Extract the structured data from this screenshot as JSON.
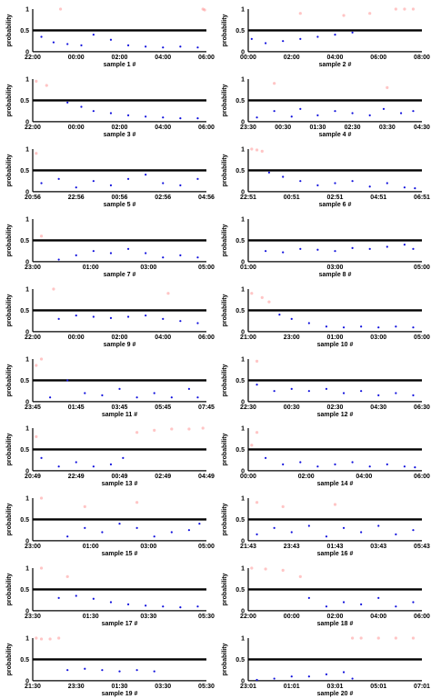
{
  "charts": {
    "ylabel": "probability",
    "yticks": [
      "0",
      "0.5",
      "1"
    ],
    "threshold": 0.5,
    "colors": {
      "high": "#ff3030",
      "low": "#1010dd",
      "line": "#000000",
      "axis": "#000000"
    },
    "panels": [
      {
        "caption": "sample 1 #",
        "xticks": [
          "22:00",
          "00:00",
          "02:00",
          "04:00",
          "06:00"
        ]
      },
      {
        "caption": "sample 2 #",
        "xticks": [
          "00:00",
          "02:00",
          "04:00",
          "06:00",
          "08:00"
        ]
      },
      {
        "caption": "sample 3 #",
        "xticks": [
          "22:00",
          "00:00",
          "02:00",
          "04:00",
          "06:00"
        ]
      },
      {
        "caption": "sample 4 #",
        "xticks": [
          "23:30",
          "00:30",
          "01:30",
          "02:30",
          "03:30",
          "04:30"
        ]
      },
      {
        "caption": "sample 5 #",
        "xticks": [
          "20:56",
          "22:56",
          "00:56",
          "02:56",
          "04:56"
        ]
      },
      {
        "caption": "sample 6 #",
        "xticks": [
          "22:51",
          "00:51",
          "02:51",
          "04:51",
          "06:51"
        ]
      },
      {
        "caption": "sample 7 #",
        "xticks": [
          "23:00",
          "01:00",
          "03:00",
          "05:00"
        ]
      },
      {
        "caption": "sample 8 #",
        "xticks": [
          "01:00",
          "03:00",
          "05:00"
        ]
      },
      {
        "caption": "sample 9 #",
        "xticks": [
          "22:00",
          "00:00",
          "02:00",
          "04:00",
          "06:00"
        ]
      },
      {
        "caption": "sample 10 #",
        "xticks": [
          "21:00",
          "23:00",
          "01:00",
          "03:00",
          "05:00"
        ]
      },
      {
        "caption": "sample 11 #",
        "xticks": [
          "23:45",
          "01:45",
          "03:45",
          "05:45",
          "07:45"
        ]
      },
      {
        "caption": "sample 12 #",
        "xticks": [
          "22:30",
          "00:30",
          "02:30",
          "04:30",
          "06:30"
        ]
      },
      {
        "caption": "sample 13 #",
        "xticks": [
          "20:49",
          "22:49",
          "00:49",
          "02:49",
          "04:49"
        ]
      },
      {
        "caption": "sample 14 #",
        "xticks": [
          "00:00",
          "02:00",
          "04:00",
          "06:00"
        ]
      },
      {
        "caption": "sample 15 #",
        "xticks": [
          "23:00",
          "01:00",
          "03:00",
          "05:00"
        ]
      },
      {
        "caption": "sample 16 #",
        "xticks": [
          "21:43",
          "23:43",
          "01:43",
          "03:43",
          "05:43"
        ]
      },
      {
        "caption": "sample 17 #",
        "xticks": [
          "23:30",
          "01:30",
          "03:30",
          "05:30"
        ]
      },
      {
        "caption": "sample 18 #",
        "xticks": [
          "22:00",
          "00:00",
          "02:00",
          "04:00",
          "06:00"
        ]
      },
      {
        "caption": "sample 19 #",
        "xticks": [
          "21:30",
          "23:30",
          "01:30",
          "03:30",
          "05:30"
        ]
      },
      {
        "caption": "sample 20 #",
        "xticks": [
          "23:01",
          "01:01",
          "03:01",
          "05:01",
          "07:01"
        ]
      }
    ]
  },
  "chart_data": {
    "type": "scatter",
    "ylim": [
      0,
      1
    ],
    "ylabel": "probability",
    "threshold_line": 0.5,
    "series_encoding": "values above 0.5 drawn as faint red points, values below 0.5 drawn as blue points",
    "panels": [
      {
        "caption": "sample 1 #",
        "high": [
          [
            0.16,
            1.0
          ],
          [
            0.98,
            1.0
          ],
          [
            0.99,
            0.98
          ]
        ],
        "low": [
          [
            0.05,
            0.35
          ],
          [
            0.12,
            0.22
          ],
          [
            0.2,
            0.18
          ],
          [
            0.28,
            0.15
          ],
          [
            0.35,
            0.4
          ],
          [
            0.45,
            0.28
          ],
          [
            0.55,
            0.15
          ],
          [
            0.65,
            0.12
          ],
          [
            0.75,
            0.1
          ],
          [
            0.85,
            0.12
          ],
          [
            0.95,
            0.1
          ]
        ]
      },
      {
        "caption": "sample 2 #",
        "high": [
          [
            0.3,
            0.9
          ],
          [
            0.55,
            0.85
          ],
          [
            0.7,
            0.9
          ],
          [
            0.85,
            1.0
          ],
          [
            0.9,
            1.0
          ],
          [
            0.95,
            1.0
          ]
        ],
        "low": [
          [
            0.02,
            0.3
          ],
          [
            0.1,
            0.2
          ],
          [
            0.2,
            0.25
          ],
          [
            0.3,
            0.3
          ],
          [
            0.4,
            0.35
          ],
          [
            0.5,
            0.4
          ],
          [
            0.6,
            0.45
          ]
        ]
      },
      {
        "caption": "sample 3 #",
        "high": [
          [
            0.02,
            0.95
          ],
          [
            0.08,
            0.85
          ]
        ],
        "low": [
          [
            0.2,
            0.45
          ],
          [
            0.28,
            0.35
          ],
          [
            0.35,
            0.25
          ],
          [
            0.45,
            0.2
          ],
          [
            0.55,
            0.15
          ],
          [
            0.65,
            0.12
          ],
          [
            0.75,
            0.1
          ],
          [
            0.85,
            0.08
          ],
          [
            0.95,
            0.08
          ]
        ]
      },
      {
        "caption": "sample 4 #",
        "high": [
          [
            0.15,
            0.9
          ],
          [
            0.8,
            0.8
          ]
        ],
        "low": [
          [
            0.05,
            0.1
          ],
          [
            0.15,
            0.25
          ],
          [
            0.25,
            0.12
          ],
          [
            0.3,
            0.3
          ],
          [
            0.4,
            0.15
          ],
          [
            0.5,
            0.25
          ],
          [
            0.6,
            0.2
          ],
          [
            0.7,
            0.15
          ],
          [
            0.78,
            0.3
          ],
          [
            0.88,
            0.2
          ],
          [
            0.95,
            0.25
          ]
        ]
      },
      {
        "caption": "sample 5 #",
        "high": [
          [
            0.02,
            0.9
          ]
        ],
        "low": [
          [
            0.05,
            0.2
          ],
          [
            0.15,
            0.3
          ],
          [
            0.25,
            0.1
          ],
          [
            0.35,
            0.25
          ],
          [
            0.45,
            0.15
          ],
          [
            0.55,
            0.3
          ],
          [
            0.65,
            0.4
          ],
          [
            0.75,
            0.2
          ],
          [
            0.85,
            0.15
          ],
          [
            0.95,
            0.3
          ]
        ]
      },
      {
        "caption": "sample 6 #",
        "high": [
          [
            0.02,
            1.0
          ],
          [
            0.05,
            0.98
          ],
          [
            0.08,
            0.95
          ]
        ],
        "low": [
          [
            0.12,
            0.45
          ],
          [
            0.2,
            0.35
          ],
          [
            0.3,
            0.25
          ],
          [
            0.4,
            0.15
          ],
          [
            0.5,
            0.2
          ],
          [
            0.6,
            0.25
          ],
          [
            0.7,
            0.12
          ],
          [
            0.8,
            0.2
          ],
          [
            0.9,
            0.1
          ],
          [
            0.96,
            0.08
          ]
        ]
      },
      {
        "caption": "sample 7 #",
        "high": [
          [
            0.05,
            0.6
          ]
        ],
        "low": [
          [
            0.15,
            0.05
          ],
          [
            0.25,
            0.15
          ],
          [
            0.35,
            0.25
          ],
          [
            0.45,
            0.2
          ],
          [
            0.55,
            0.3
          ],
          [
            0.65,
            0.2
          ],
          [
            0.75,
            0.1
          ],
          [
            0.85,
            0.15
          ],
          [
            0.95,
            0.1
          ]
        ]
      },
      {
        "caption": "sample 8 #",
        "high": [],
        "low": [
          [
            0.1,
            0.25
          ],
          [
            0.2,
            0.22
          ],
          [
            0.3,
            0.3
          ],
          [
            0.4,
            0.28
          ],
          [
            0.5,
            0.25
          ],
          [
            0.6,
            0.32
          ],
          [
            0.7,
            0.3
          ],
          [
            0.8,
            0.35
          ],
          [
            0.9,
            0.4
          ],
          [
            0.95,
            0.3
          ]
        ]
      },
      {
        "caption": "sample 9 #",
        "high": [
          [
            0.12,
            1.0
          ],
          [
            0.78,
            0.9
          ]
        ],
        "low": [
          [
            0.15,
            0.3
          ],
          [
            0.25,
            0.38
          ],
          [
            0.35,
            0.35
          ],
          [
            0.45,
            0.32
          ],
          [
            0.55,
            0.35
          ],
          [
            0.65,
            0.38
          ],
          [
            0.75,
            0.3
          ],
          [
            0.85,
            0.25
          ],
          [
            0.95,
            0.2
          ]
        ]
      },
      {
        "caption": "sample 10 #",
        "high": [
          [
            0.02,
            0.9
          ],
          [
            0.08,
            0.8
          ],
          [
            0.12,
            0.7
          ]
        ],
        "low": [
          [
            0.18,
            0.4
          ],
          [
            0.25,
            0.3
          ],
          [
            0.35,
            0.2
          ],
          [
            0.45,
            0.12
          ],
          [
            0.55,
            0.1
          ],
          [
            0.65,
            0.12
          ],
          [
            0.75,
            0.1
          ],
          [
            0.85,
            0.12
          ],
          [
            0.95,
            0.1
          ]
        ]
      },
      {
        "caption": "sample 11 #",
        "high": [
          [
            0.02,
            0.85
          ],
          [
            0.05,
            1.0
          ]
        ],
        "low": [
          [
            0.1,
            0.1
          ],
          [
            0.2,
            0.5
          ],
          [
            0.3,
            0.2
          ],
          [
            0.4,
            0.15
          ],
          [
            0.5,
            0.3
          ],
          [
            0.6,
            0.1
          ],
          [
            0.7,
            0.2
          ],
          [
            0.8,
            0.1
          ],
          [
            0.9,
            0.3
          ],
          [
            0.95,
            0.1
          ]
        ]
      },
      {
        "caption": "sample 12 #",
        "high": [
          [
            0.05,
            0.95
          ]
        ],
        "low": [
          [
            0.05,
            0.4
          ],
          [
            0.15,
            0.25
          ],
          [
            0.25,
            0.3
          ],
          [
            0.35,
            0.25
          ],
          [
            0.45,
            0.3
          ],
          [
            0.55,
            0.2
          ],
          [
            0.65,
            0.25
          ],
          [
            0.75,
            0.15
          ],
          [
            0.85,
            0.2
          ],
          [
            0.95,
            0.15
          ]
        ]
      },
      {
        "caption": "sample 13 #",
        "high": [
          [
            0.02,
            0.8
          ],
          [
            0.6,
            0.9
          ],
          [
            0.7,
            0.95
          ],
          [
            0.8,
            0.98
          ],
          [
            0.9,
            0.98
          ],
          [
            0.98,
            1.0
          ]
        ],
        "low": [
          [
            0.05,
            0.3
          ],
          [
            0.15,
            0.1
          ],
          [
            0.25,
            0.2
          ],
          [
            0.35,
            0.1
          ],
          [
            0.45,
            0.15
          ],
          [
            0.52,
            0.3
          ]
        ]
      },
      {
        "caption": "sample 14 #",
        "high": [
          [
            0.02,
            0.6
          ],
          [
            0.05,
            0.9
          ]
        ],
        "low": [
          [
            0.1,
            0.3
          ],
          [
            0.2,
            0.15
          ],
          [
            0.3,
            0.2
          ],
          [
            0.4,
            0.1
          ],
          [
            0.5,
            0.15
          ],
          [
            0.6,
            0.2
          ],
          [
            0.7,
            0.1
          ],
          [
            0.8,
            0.15
          ],
          [
            0.9,
            0.1
          ],
          [
            0.96,
            0.08
          ]
        ]
      },
      {
        "caption": "sample 15 #",
        "high": [
          [
            0.05,
            1.0
          ],
          [
            0.3,
            0.8
          ],
          [
            0.6,
            0.9
          ]
        ],
        "low": [
          [
            0.2,
            0.1
          ],
          [
            0.3,
            0.3
          ],
          [
            0.4,
            0.2
          ],
          [
            0.5,
            0.4
          ],
          [
            0.6,
            0.3
          ],
          [
            0.7,
            0.1
          ],
          [
            0.8,
            0.2
          ],
          [
            0.9,
            0.25
          ],
          [
            0.96,
            0.4
          ]
        ]
      },
      {
        "caption": "sample 16 #",
        "high": [
          [
            0.05,
            0.9
          ],
          [
            0.2,
            0.8
          ],
          [
            0.5,
            0.85
          ]
        ],
        "low": [
          [
            0.05,
            0.15
          ],
          [
            0.15,
            0.3
          ],
          [
            0.25,
            0.2
          ],
          [
            0.35,
            0.35
          ],
          [
            0.45,
            0.1
          ],
          [
            0.55,
            0.3
          ],
          [
            0.65,
            0.2
          ],
          [
            0.75,
            0.35
          ],
          [
            0.85,
            0.15
          ],
          [
            0.95,
            0.25
          ]
        ]
      },
      {
        "caption": "sample 17 #",
        "high": [
          [
            0.05,
            1.0
          ],
          [
            0.2,
            0.8
          ]
        ],
        "low": [
          [
            0.15,
            0.3
          ],
          [
            0.25,
            0.35
          ],
          [
            0.35,
            0.28
          ],
          [
            0.45,
            0.2
          ],
          [
            0.55,
            0.15
          ],
          [
            0.65,
            0.12
          ],
          [
            0.75,
            0.1
          ],
          [
            0.85,
            0.08
          ],
          [
            0.95,
            0.1
          ]
        ]
      },
      {
        "caption": "sample 18 #",
        "high": [
          [
            0.02,
            1.0
          ],
          [
            0.1,
            0.98
          ],
          [
            0.2,
            0.95
          ],
          [
            0.3,
            0.8
          ]
        ],
        "low": [
          [
            0.35,
            0.3
          ],
          [
            0.45,
            0.1
          ],
          [
            0.55,
            0.2
          ],
          [
            0.65,
            0.15
          ],
          [
            0.75,
            0.3
          ],
          [
            0.85,
            0.1
          ],
          [
            0.95,
            0.2
          ]
        ]
      },
      {
        "caption": "sample 19 #",
        "high": [
          [
            0.02,
            1.0
          ],
          [
            0.05,
            0.98
          ],
          [
            0.1,
            0.98
          ],
          [
            0.15,
            1.0
          ]
        ],
        "low": [
          [
            0.2,
            0.25
          ],
          [
            0.3,
            0.28
          ],
          [
            0.4,
            0.25
          ],
          [
            0.5,
            0.22
          ],
          [
            0.6,
            0.25
          ],
          [
            0.7,
            0.22
          ]
        ]
      },
      {
        "caption": "sample 20 #",
        "high": [
          [
            0.6,
            1.0
          ],
          [
            0.65,
            1.0
          ],
          [
            0.75,
            1.0
          ],
          [
            0.85,
            1.0
          ],
          [
            0.95,
            1.0
          ]
        ],
        "low": [
          [
            0.05,
            0.02
          ],
          [
            0.15,
            0.05
          ],
          [
            0.25,
            0.1
          ],
          [
            0.35,
            0.1
          ],
          [
            0.45,
            0.15
          ],
          [
            0.55,
            0.2
          ],
          [
            0.6,
            0.05
          ]
        ]
      }
    ]
  }
}
